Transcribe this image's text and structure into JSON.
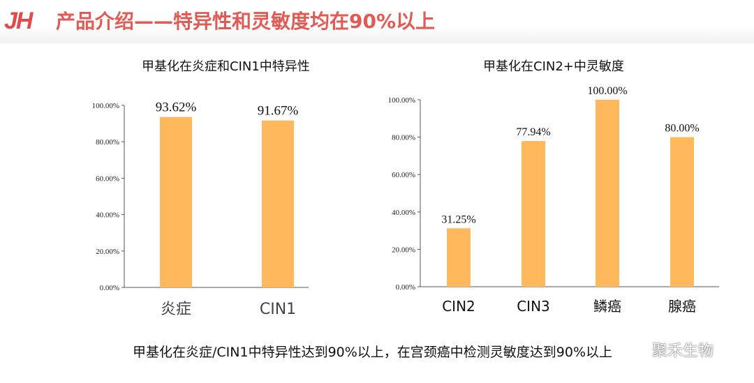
{
  "header": {
    "logo": "JH",
    "title": "产品介绍——特异性和灵敏度均在90%以上"
  },
  "chart_data": [
    {
      "type": "bar",
      "title": "甲基化在炎症和CIN1中特异性",
      "categories": [
        "炎症",
        "CIN1"
      ],
      "values": [
        93.62,
        91.67
      ],
      "data_labels": [
        "93.62%",
        "91.67%"
      ],
      "ylim": [
        0,
        100
      ],
      "yticks": [
        "0.00%",
        "20.00%",
        "40.00%",
        "60.00%",
        "80.00%",
        "100.00%"
      ],
      "grid": false,
      "color": "#ffb85c"
    },
    {
      "type": "bar",
      "title": "甲基化在CIN2+中灵敏度",
      "categories": [
        "CIN2",
        "CIN3",
        "鳞癌",
        "腺癌"
      ],
      "values": [
        31.25,
        77.94,
        100.0,
        80.0
      ],
      "data_labels": [
        "31.25%",
        "77.94%",
        "100.00%",
        "80.00%"
      ],
      "ylim": [
        0,
        100
      ],
      "yticks": [
        "0.00%",
        "20.00%",
        "40.00%",
        "60.00%",
        "80.00%",
        "100.00%"
      ],
      "grid": false,
      "color": "#ffb85c"
    }
  ],
  "footer": {
    "text": "甲基化在炎症/CIN1中特异性达到90%以上，在宫颈癌中检测灵敏度达到90%以上"
  },
  "watermark": {
    "icon": "wechat-icon",
    "text": "聚禾生物"
  }
}
